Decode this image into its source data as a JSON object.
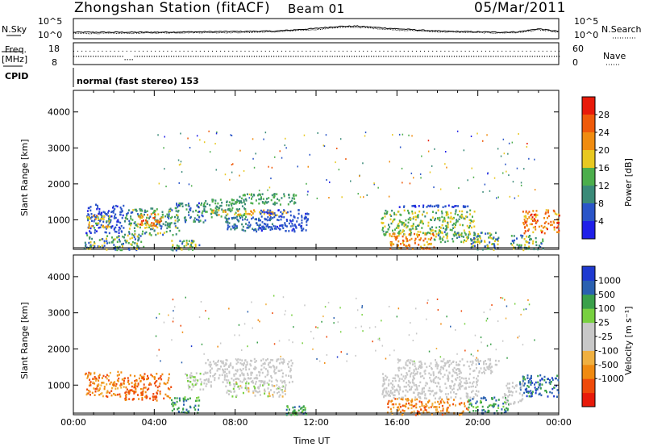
{
  "header": {
    "station": "Zhongshan Station (fitACF)",
    "beam": "Beam 01",
    "date": "05/Mar/2011"
  },
  "colors": {
    "power": [
      "#1f1fe8",
      "#2a55c8",
      "#3a8a78",
      "#4cae4c",
      "#e8c820",
      "#f08c10",
      "#ef5a0a",
      "#e81a0a"
    ],
    "velocity": [
      "#e81a0a",
      "#ef4a0a",
      "#f08a10",
      "#f0b040",
      "#c8c8c8",
      "#c8c8c8",
      "#78d040",
      "#3aa04a",
      "#2a60b0",
      "#1f3ad0"
    ]
  },
  "chart_data": [
    {
      "type": "line",
      "name": "noise-panel",
      "left_label": "N.Sky",
      "right_label": "N.Search",
      "y_ticks_left": [
        "10^5",
        "10^0"
      ],
      "y_ticks_right": [
        "10^5",
        "10^0"
      ],
      "x_hours": [
        0,
        2,
        4,
        6,
        8,
        10,
        12,
        13,
        14,
        16,
        18,
        20,
        21,
        22,
        23,
        24
      ],
      "sky_log": [
        1.7,
        1.7,
        1.7,
        1.8,
        1.9,
        2.0,
        2.7,
        3.2,
        3.3,
        2.6,
        2.0,
        1.8,
        1.7,
        1.8,
        2.6,
        1.9
      ],
      "search_log": [
        1.4,
        1.4,
        1.5,
        1.6,
        1.6,
        1.8,
        2.4,
        2.9,
        3.0,
        2.3,
        1.8,
        1.6,
        1.5,
        1.6,
        2.3,
        1.7
      ]
    },
    {
      "type": "scatter",
      "name": "frequency-panel",
      "left_label_1": "Freq.",
      "left_label_2": "[MHz]",
      "right_label": "Nave",
      "y_ticks_left": [
        "18",
        "8"
      ],
      "y_ticks_right": [
        "60",
        "0"
      ],
      "freq_mhz": 12,
      "freq_dip": [
        {
          "start": 2.5,
          "end": 3.0,
          "value": 10.5
        }
      ],
      "nave": 38
    },
    {
      "type": "text",
      "name": "cpid",
      "label": "CPID",
      "value": "normal (fast stereo) 153"
    },
    {
      "type": "heatmap",
      "name": "power",
      "ylabel": "Slant Range [km]",
      "ylim": [
        180,
        4600
      ],
      "yticks": [
        1000,
        2000,
        3000,
        4000
      ],
      "colorbar_label": "Power [dB]",
      "colorbar_ticks": [
        4,
        8,
        12,
        16,
        20,
        24,
        28
      ],
      "colorbar_range": [
        0,
        32
      ],
      "regions": [
        {
          "h": [
            0.6,
            2.5
          ],
          "r": [
            650,
            1450
          ],
          "v": [
            3,
            8
          ]
        },
        {
          "h": [
            2.5,
            5.2
          ],
          "r": [
            600,
            1350
          ],
          "v": [
            6,
            18
          ]
        },
        {
          "h": [
            3.2,
            4.3
          ],
          "r": [
            850,
            1200
          ],
          "v": [
            18,
            30
          ]
        },
        {
          "h": [
            0.6,
            1.8
          ],
          "r": [
            800,
            1150
          ],
          "v": [
            14,
            24
          ]
        },
        {
          "h": [
            0.5,
            3.5
          ],
          "r": [
            180,
            600
          ],
          "v": [
            4,
            20
          ]
        },
        {
          "h": [
            4.8,
            6.2
          ],
          "r": [
            180,
            450
          ],
          "v": [
            6,
            20
          ]
        },
        {
          "h": [
            5.0,
            6.5
          ],
          "r": [
            950,
            1500
          ],
          "v": [
            3,
            14
          ]
        },
        {
          "h": [
            6.2,
            8.5
          ],
          "r": [
            1050,
            1600
          ],
          "v": [
            8,
            16
          ]
        },
        {
          "h": [
            8.0,
            11.0
          ],
          "r": [
            1450,
            1750
          ],
          "v": [
            8,
            16
          ]
        },
        {
          "h": [
            6.8,
            10.6
          ],
          "r": [
            1150,
            1300
          ],
          "v": [
            16,
            24
          ]
        },
        {
          "h": [
            7.5,
            10.0
          ],
          "r": [
            700,
            1100
          ],
          "v": [
            4,
            10
          ]
        },
        {
          "h": [
            9.0,
            11.6
          ],
          "r": [
            700,
            1300
          ],
          "v": [
            3,
            8
          ]
        },
        {
          "h": [
            15.2,
            19.8
          ],
          "r": [
            600,
            1300
          ],
          "v": [
            10,
            20
          ]
        },
        {
          "h": [
            16.0,
            19.5
          ],
          "r": [
            1380,
            1430
          ],
          "v": [
            3,
            6
          ]
        },
        {
          "h": [
            15.6,
            17.8
          ],
          "r": [
            200,
            650
          ],
          "v": [
            18,
            28
          ]
        },
        {
          "h": [
            17.8,
            20.2
          ],
          "r": [
            400,
            700
          ],
          "v": [
            6,
            20
          ]
        },
        {
          "h": [
            19.6,
            21.0
          ],
          "r": [
            180,
            700
          ],
          "v": [
            4,
            20
          ]
        },
        {
          "h": [
            22.2,
            24.0
          ],
          "r": [
            650,
            1300
          ],
          "v": [
            18,
            30
          ]
        },
        {
          "h": [
            21.6,
            23.2
          ],
          "r": [
            180,
            600
          ],
          "v": [
            6,
            20
          ]
        }
      ]
    },
    {
      "type": "heatmap",
      "name": "velocity",
      "ylabel": "Slant Range [km]",
      "xlabel": "Time UT",
      "ylim": [
        180,
        4600
      ],
      "yticks": [
        1000,
        2000,
        3000,
        4000
      ],
      "xticks": [
        "00:00",
        "04:00",
        "08:00",
        "12:00",
        "16:00",
        "20:00",
        "00:00"
      ],
      "colorbar_label": "Velocity [m s⁻¹]",
      "colorbar_ticks": [
        "1000",
        "500",
        "100",
        "25",
        "-25",
        "-100",
        "-500",
        "-1000"
      ],
      "regions": [
        {
          "h": [
            0.5,
            2.5
          ],
          "r": [
            700,
            1400
          ],
          "c": [
            1,
            3
          ]
        },
        {
          "h": [
            2.5,
            4.8
          ],
          "r": [
            600,
            1350
          ],
          "c": [
            1,
            2
          ]
        },
        {
          "h": [
            4.8,
            6.2
          ],
          "r": [
            250,
            700
          ],
          "c": [
            6,
            8
          ]
        },
        {
          "h": [
            5.5,
            6.8
          ],
          "r": [
            900,
            1400
          ],
          "c": [
            4,
            6
          ]
        },
        {
          "h": [
            6.5,
            10.8
          ],
          "r": [
            1100,
            1750
          ],
          "c": [
            4,
            5
          ]
        },
        {
          "h": [
            7.5,
            10.5
          ],
          "r": [
            700,
            1100
          ],
          "c": [
            3,
            6
          ]
        },
        {
          "h": [
            10.5,
            11.5
          ],
          "r": [
            200,
            450
          ],
          "c": [
            6,
            8
          ]
        },
        {
          "h": [
            15.2,
            20.0
          ],
          "r": [
            650,
            1350
          ],
          "c": [
            4,
            5
          ]
        },
        {
          "h": [
            16.0,
            21.0
          ],
          "r": [
            1350,
            1750
          ],
          "c": [
            4,
            5
          ]
        },
        {
          "h": [
            15.5,
            19.5
          ],
          "r": [
            200,
            650
          ],
          "c": [
            1,
            3
          ]
        },
        {
          "h": [
            19.5,
            21.5
          ],
          "r": [
            250,
            700
          ],
          "c": [
            6,
            8
          ]
        },
        {
          "h": [
            22.0,
            24.0
          ],
          "r": [
            700,
            1300
          ],
          "c": [
            7,
            9
          ]
        },
        {
          "h": [
            21.2,
            22.2
          ],
          "r": [
            500,
            1100
          ],
          "c": [
            4,
            5
          ]
        }
      ]
    }
  ]
}
